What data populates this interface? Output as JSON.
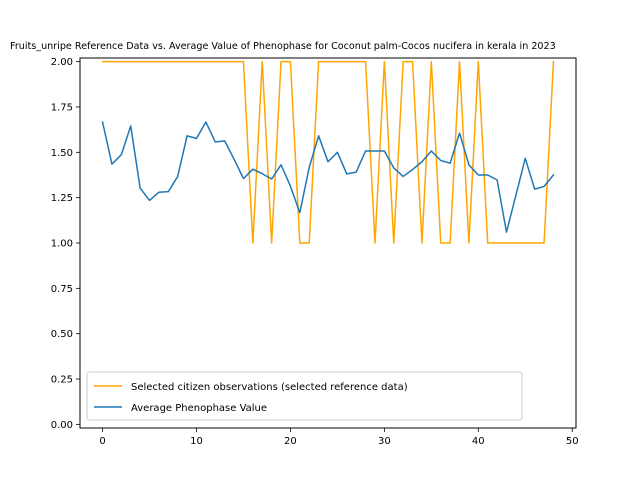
{
  "chart_data": {
    "type": "line",
    "title": "Fruits_unripe Reference Data vs. Average Value of Phenophase for Coconut palm-Cocos nucifera in kerala in 2023",
    "xlabel": "",
    "ylabel": "",
    "xlim": [
      -2.4,
      50.4
    ],
    "ylim": [
      -0.02,
      2.02
    ],
    "xticks": [
      0,
      10,
      20,
      30,
      40,
      50
    ],
    "yticks": [
      0.0,
      0.25,
      0.5,
      0.75,
      1.0,
      1.25,
      1.5,
      1.75,
      2.0
    ],
    "ytick_labels": [
      "0.00",
      "0.25",
      "0.50",
      "0.75",
      "1.00",
      "1.25",
      "1.50",
      "1.75",
      "2.00"
    ],
    "grid": false,
    "legend_position": "lower-left",
    "x": [
      0,
      1,
      2,
      3,
      4,
      5,
      6,
      7,
      8,
      9,
      10,
      11,
      12,
      13,
      14,
      15,
      16,
      17,
      18,
      19,
      20,
      21,
      22,
      23,
      24,
      25,
      26,
      27,
      28,
      29,
      30,
      31,
      32,
      33,
      34,
      35,
      36,
      37,
      38,
      39,
      40,
      41,
      42,
      43,
      44,
      45,
      46,
      47,
      48
    ],
    "series": [
      {
        "name": "Selected citizen observations (selected reference data)",
        "color": "#ffa500",
        "values": [
          2,
          2,
          2,
          2,
          2,
          2,
          2,
          2,
          2,
          2,
          2,
          2,
          2,
          2,
          2,
          2,
          1,
          2,
          1,
          2,
          2,
          1,
          1,
          2,
          2,
          2,
          2,
          2,
          2,
          1,
          2,
          1,
          2,
          2,
          1,
          2,
          1,
          1,
          2,
          1,
          2,
          1,
          1,
          1,
          1,
          1,
          1,
          1,
          2
        ]
      },
      {
        "name": "Average Phenophase Value",
        "color": "#1f77b4",
        "values": [
          1.667,
          1.435,
          1.487,
          1.645,
          1.303,
          1.235,
          1.28,
          1.283,
          1.367,
          1.591,
          1.576,
          1.667,
          1.557,
          1.563,
          1.462,
          1.355,
          1.407,
          1.382,
          1.353,
          1.431,
          1.313,
          1.167,
          1.417,
          1.591,
          1.448,
          1.5,
          1.381,
          1.391,
          1.507,
          1.507,
          1.507,
          1.414,
          1.367,
          1.405,
          1.448,
          1.507,
          1.455,
          1.44,
          1.606,
          1.431,
          1.375,
          1.375,
          1.348,
          1.06,
          1.263,
          1.467,
          1.297,
          1.312,
          1.375
        ]
      }
    ]
  }
}
